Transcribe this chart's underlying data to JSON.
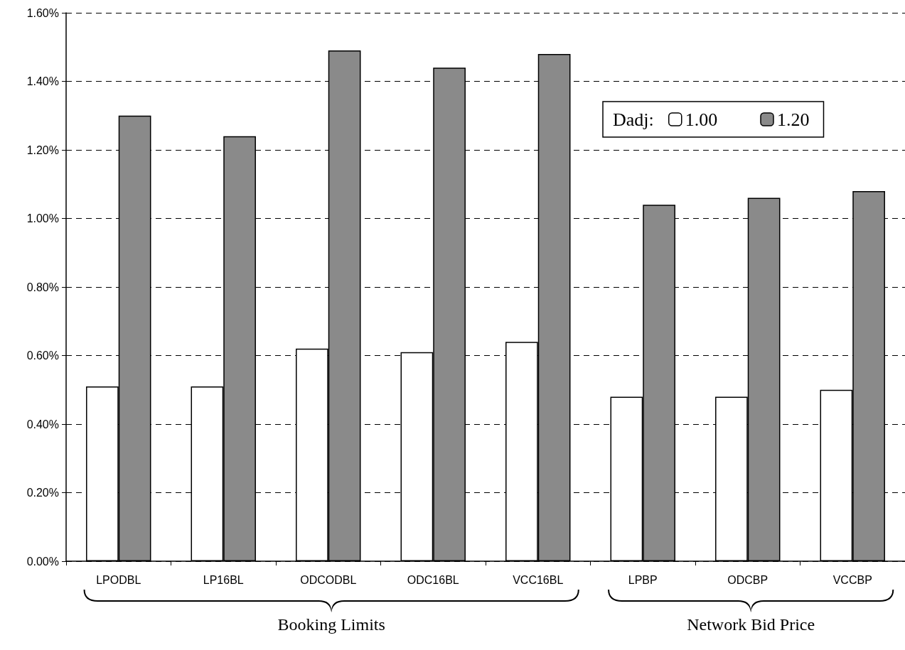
{
  "chart_data": {
    "type": "bar",
    "categories": [
      "LPODBL",
      "LP16BL",
      "ODCODBL",
      "ODC16BL",
      "VCC16BL",
      "LPBP",
      "ODCBP",
      "VCCBP"
    ],
    "series": [
      {
        "name": "1.00",
        "color": "#ffffff",
        "values": [
          0.51,
          0.51,
          0.62,
          0.61,
          0.64,
          0.48,
          0.48,
          0.5
        ]
      },
      {
        "name": "1.20",
        "color": "#8a8a8a",
        "values": [
          1.3,
          1.24,
          1.49,
          1.44,
          1.48,
          1.04,
          1.06,
          1.08
        ]
      }
    ],
    "ylim": [
      0,
      1.6
    ],
    "yticks": [
      {
        "value": 0,
        "label": "0.00%"
      },
      {
        "value": 0.2,
        "label": "0.20%"
      },
      {
        "value": 0.4,
        "label": "0.40%"
      },
      {
        "value": 0.6,
        "label": "0.60%"
      },
      {
        "value": 0.8,
        "label": "0.80%"
      },
      {
        "value": 1.0,
        "label": "1.00%"
      },
      {
        "value": 1.2,
        "label": "1.20%"
      },
      {
        "value": 1.4,
        "label": "1.40%"
      },
      {
        "value": 1.6,
        "label": "1.60%"
      }
    ],
    "grid": "y",
    "legend": "top right",
    "legend_title": "Dadj:",
    "annotations": [
      "Booking Limits",
      "Network Bid Price"
    ]
  }
}
